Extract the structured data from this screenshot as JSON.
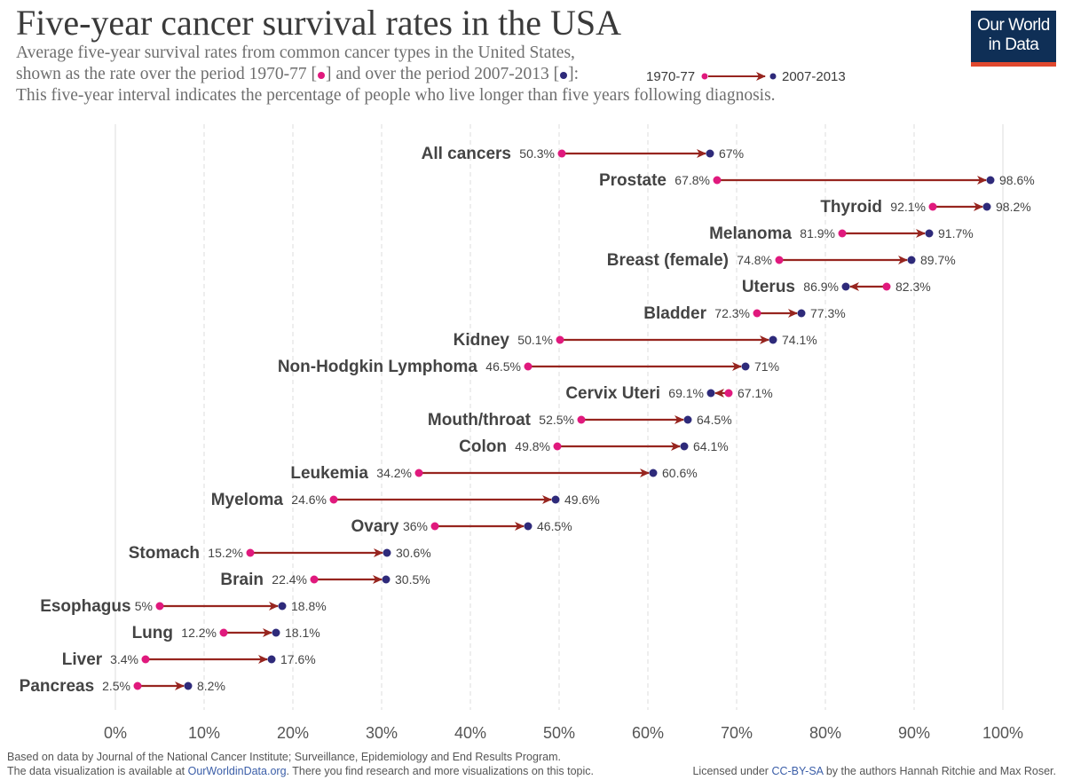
{
  "title": "Five-year cancer survival rates in the USA",
  "subtitle": {
    "line1": "Average five-year survival rates from common cancer types in the United States,",
    "line2_a": "shown as the rate over the period 1970-77 [",
    "line2_b": "] and over the period 2007-2013 [",
    "line2_c": "]:",
    "line3": "This five-year interval indicates the percentage of people who live longer than five years following diagnosis."
  },
  "legend": {
    "start_label": "1970-77",
    "end_label": "2007-2013"
  },
  "logo": {
    "line1": "Our World",
    "line2": "in Data"
  },
  "footer": {
    "source": "Based on data by Journal of the National Cancer Institute; Surveillance, Epidemiology and End Results Program.",
    "avail_a": "The data visualization is available at ",
    "avail_link": "OurWorldinData.org",
    "avail_b": ". There you find research and more visualizations on this topic.",
    "license_a": "Licensed under ",
    "license_link": "CC-BY-SA",
    "license_b": " by the authors Hannah Ritchie and Max Roser."
  },
  "colors": {
    "start": "#e0197d",
    "end": "#2e2a7a",
    "arrow": "#97251f",
    "grid": "#dddddd",
    "text": "#3d3d3d"
  },
  "chart_data": {
    "type": "dumbbell",
    "xlim": [
      0,
      100
    ],
    "x_ticks": [
      "0%",
      "10%",
      "20%",
      "30%",
      "40%",
      "50%",
      "60%",
      "70%",
      "80%",
      "90%",
      "100%"
    ],
    "series": [
      {
        "name": "1970-77"
      },
      {
        "name": "2007-2013"
      }
    ],
    "categories": [
      "All cancers",
      "Prostate",
      "Thyroid",
      "Melanoma",
      "Breast (female)",
      "Uterus",
      "Bladder",
      "Kidney",
      "Non-Hodgkin Lymphoma",
      "Cervix Uteri",
      "Mouth/throat",
      "Colon",
      "Leukemia",
      "Myeloma",
      "Ovary",
      "Stomach",
      "Brain",
      "Esophagus",
      "Lung",
      "Liver",
      "Pancreas"
    ],
    "rows": [
      {
        "label": "All cancers",
        "start": 50.3,
        "end": 67,
        "start_label": "50.3%",
        "end_label": "67%"
      },
      {
        "label": "Prostate",
        "start": 67.8,
        "end": 98.6,
        "start_label": "67.8%",
        "end_label": "98.6%"
      },
      {
        "label": "Thyroid",
        "start": 92.1,
        "end": 98.2,
        "start_label": "92.1%",
        "end_label": "98.2%"
      },
      {
        "label": "Melanoma",
        "start": 81.9,
        "end": 91.7,
        "start_label": "81.9%",
        "end_label": "91.7%"
      },
      {
        "label": "Breast (female)",
        "start": 74.8,
        "end": 89.7,
        "start_label": "74.8%",
        "end_label": "89.7%"
      },
      {
        "label": "Uterus",
        "start": 86.9,
        "end": 82.3,
        "start_label": "82.3%",
        "end_label": "86.9%"
      },
      {
        "label": "Bladder",
        "start": 72.3,
        "end": 77.3,
        "start_label": "72.3%",
        "end_label": "77.3%"
      },
      {
        "label": "Kidney",
        "start": 50.1,
        "end": 74.1,
        "start_label": "50.1%",
        "end_label": "74.1%"
      },
      {
        "label": "Non-Hodgkin Lymphoma",
        "start": 46.5,
        "end": 71,
        "start_label": "46.5%",
        "end_label": "71%"
      },
      {
        "label": "Cervix Uteri",
        "start": 69.1,
        "end": 67.1,
        "start_label": "67.1%",
        "end_label": "69.1%"
      },
      {
        "label": "Mouth/throat",
        "start": 52.5,
        "end": 64.5,
        "start_label": "52.5%",
        "end_label": "64.5%"
      },
      {
        "label": "Colon",
        "start": 49.8,
        "end": 64.1,
        "start_label": "49.8%",
        "end_label": "64.1%"
      },
      {
        "label": "Leukemia",
        "start": 34.2,
        "end": 60.6,
        "start_label": "34.2%",
        "end_label": "60.6%"
      },
      {
        "label": "Myeloma",
        "start": 24.6,
        "end": 49.6,
        "start_label": "24.6%",
        "end_label": "49.6%"
      },
      {
        "label": "Ovary",
        "start": 36,
        "end": 46.5,
        "start_label": "36%",
        "end_label": "46.5%"
      },
      {
        "label": "Stomach",
        "start": 15.2,
        "end": 30.6,
        "start_label": "15.2%",
        "end_label": "30.6%"
      },
      {
        "label": "Brain",
        "start": 22.4,
        "end": 30.5,
        "start_label": "22.4%",
        "end_label": "30.5%"
      },
      {
        "label": "Esophagus",
        "start": 5,
        "end": 18.8,
        "start_label": "5%",
        "end_label": "18.8%"
      },
      {
        "label": "Lung",
        "start": 12.2,
        "end": 18.1,
        "start_label": "12.2%",
        "end_label": "18.1%"
      },
      {
        "label": "Liver",
        "start": 3.4,
        "end": 17.6,
        "start_label": "3.4%",
        "end_label": "17.6%"
      },
      {
        "label": "Pancreas",
        "start": 2.5,
        "end": 8.2,
        "start_label": "2.5%",
        "end_label": "8.2%"
      }
    ]
  }
}
